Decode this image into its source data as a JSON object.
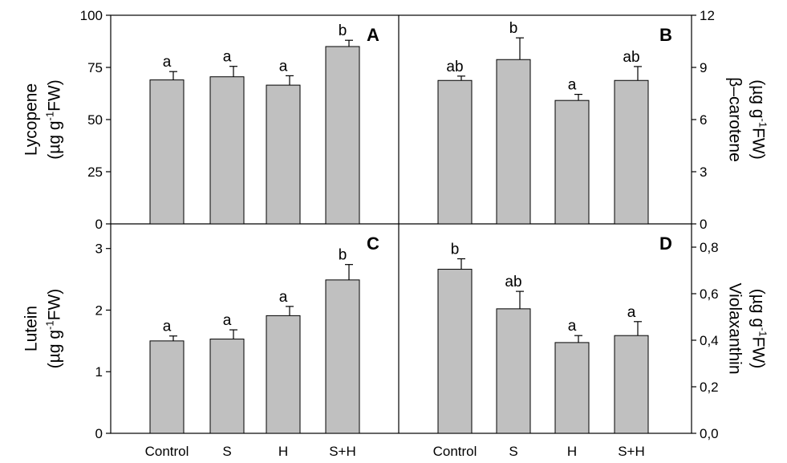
{
  "chart_data": [
    {
      "panel": "A",
      "type": "bar",
      "categories": [
        "Control",
        "S",
        "H",
        "S+H"
      ],
      "values": [
        69,
        70.5,
        66.5,
        85
      ],
      "errors": [
        4,
        5,
        4.5,
        3
      ],
      "significance": [
        "a",
        "a",
        "a",
        "b"
      ],
      "ylabel_line1": "Lycopene",
      "ylabel_line2_pre": "(µg g",
      "ylabel_sup": "-1",
      "ylabel_post": "FW)",
      "ylim": [
        0,
        100
      ],
      "yticks": [
        "0",
        "25",
        "50",
        "75",
        "100"
      ],
      "ytick_values": [
        0,
        25,
        50,
        75,
        100
      ],
      "axis_side": "left"
    },
    {
      "panel": "B",
      "type": "bar",
      "categories": [
        "Control",
        "S",
        "H",
        "S+H"
      ],
      "values": [
        8.25,
        9.45,
        7.1,
        8.25
      ],
      "errors": [
        0.25,
        1.25,
        0.35,
        0.8
      ],
      "significance": [
        "ab",
        "b",
        "a",
        "ab"
      ],
      "ylabel_line1": "β–carotene",
      "ylabel_line2_pre": "(µg g",
      "ylabel_sup": "-1",
      "ylabel_post": "FW)",
      "ylim": [
        0,
        12
      ],
      "yticks": [
        "0",
        "3",
        "6",
        "9",
        "12"
      ],
      "ytick_values": [
        0,
        3,
        6,
        9,
        12
      ],
      "axis_side": "right"
    },
    {
      "panel": "C",
      "type": "bar",
      "categories": [
        "Control",
        "S",
        "H",
        "S+H"
      ],
      "values": [
        1.5,
        1.53,
        1.91,
        2.49
      ],
      "errors": [
        0.08,
        0.15,
        0.15,
        0.25
      ],
      "significance": [
        "a",
        "a",
        "a",
        "b"
      ],
      "ylabel_line1": "Lutein",
      "ylabel_line2_pre": "(µg g",
      "ylabel_sup": "-1",
      "ylabel_post": "FW)",
      "ylim": [
        0,
        3.4
      ],
      "yticks": [
        "0",
        "1",
        "2",
        "3"
      ],
      "ytick_values": [
        0,
        1,
        2,
        3
      ],
      "axis_side": "left"
    },
    {
      "panel": "D",
      "type": "bar",
      "categories": [
        "Control",
        "S",
        "H",
        "S+H"
      ],
      "values": [
        0.705,
        0.535,
        0.39,
        0.42
      ],
      "errors": [
        0.045,
        0.075,
        0.03,
        0.06
      ],
      "significance": [
        "b",
        "ab",
        "a",
        "a"
      ],
      "ylabel_line1": "Violaxanthin",
      "ylabel_line2_pre": "(µg g",
      "ylabel_sup": "-1",
      "ylabel_post": "FW)",
      "ylim": [
        0,
        0.9
      ],
      "yticks": [
        "0,0",
        "0,2",
        "0,4",
        "0,6",
        "0,8"
      ],
      "ytick_values": [
        0,
        0.2,
        0.4,
        0.6,
        0.8
      ],
      "axis_side": "right"
    }
  ]
}
